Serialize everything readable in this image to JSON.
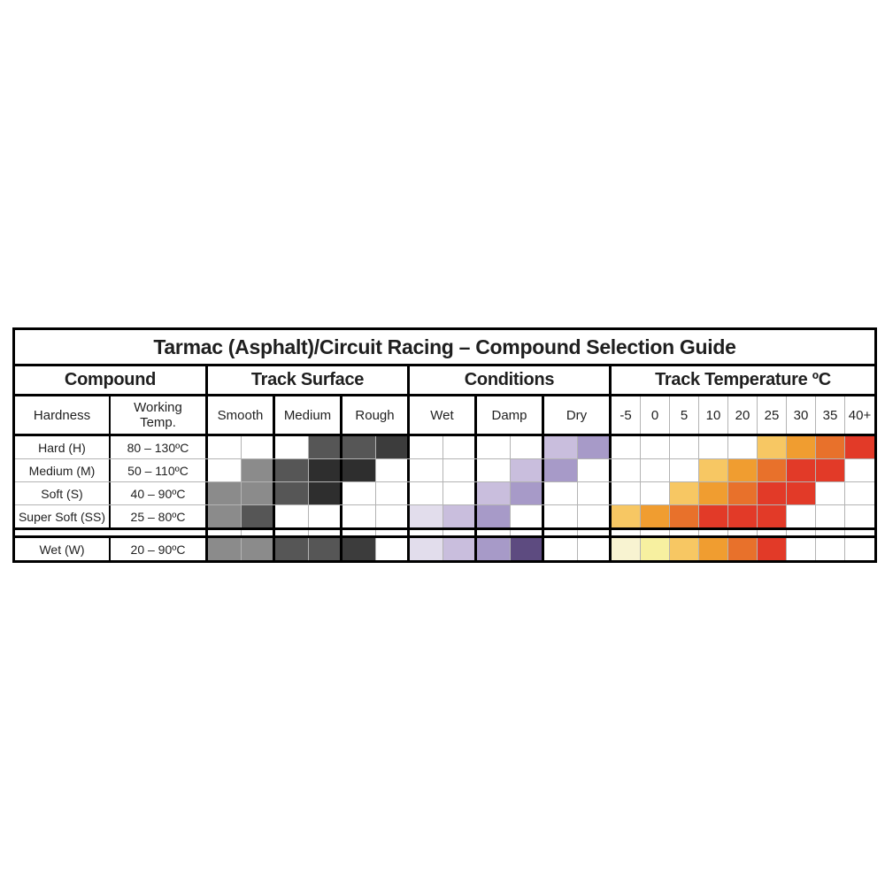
{
  "title": "Tarmac (Asphalt)/Circuit Racing – Compound Selection Guide",
  "sections": {
    "compound": "Compound",
    "track_surface": "Track Surface",
    "conditions": "Conditions",
    "track_temperature": "Track Temperature ºC"
  },
  "columns": {
    "hardness": "Hardness",
    "working_temp": "Working\nTemp.",
    "track_surface": [
      "Smooth",
      "Medium",
      "Rough"
    ],
    "conditions": [
      "Wet",
      "Damp",
      "Dry"
    ],
    "temperatures": [
      "-5",
      "0",
      "5",
      "10",
      "20",
      "25",
      "30",
      "35",
      "40+"
    ]
  },
  "palette": {
    "W": "#ffffff",
    "G1": "#8b8b8b",
    "G2": "#565656",
    "G3": "#3c3c3c",
    "G4": "#2e2e2e",
    "P1": "#e2ddec",
    "P2": "#c9bedd",
    "P3": "#a79ac8",
    "P4": "#5d4b80",
    "Y1": "#f8f3d1",
    "Y2": "#f7f0a0",
    "O3": "#f7c763",
    "O4": "#f09d30",
    "O5": "#e8712b",
    "O6": "#e23a28"
  },
  "chart_data": {
    "type": "heatmap",
    "title": "Tarmac (Asphalt)/Circuit Racing – Compound Selection Guide",
    "columns": {
      "track_surface_halves": [
        "Smooth-a",
        "Smooth-b",
        "Medium-a",
        "Medium-b",
        "Rough-a",
        "Rough-b"
      ],
      "conditions_halves": [
        "Wet-a",
        "Wet-b",
        "Damp-a",
        "Damp-b",
        "Dry-a",
        "Dry-b"
      ],
      "track_temperature_c": [
        "-5",
        "0",
        "5",
        "10",
        "20",
        "25",
        "30",
        "35",
        "40+"
      ]
    },
    "rows": [
      {
        "hardness": "Hard (H)",
        "working_temp": "80 – 130ºC",
        "track_surface": [
          "W",
          "W",
          "W",
          "G2",
          "G2",
          "G3"
        ],
        "conditions": [
          "W",
          "W",
          "W",
          "W",
          "P2",
          "P3"
        ],
        "temperature": [
          "W",
          "W",
          "W",
          "W",
          "W",
          "O3",
          "O4",
          "O5",
          "O6"
        ],
        "separator_before": false
      },
      {
        "hardness": "Medium (M)",
        "working_temp": "50 – 110ºC",
        "track_surface": [
          "W",
          "G1",
          "G2",
          "G4",
          "G4",
          "W"
        ],
        "conditions": [
          "W",
          "W",
          "W",
          "P2",
          "P3",
          "W"
        ],
        "temperature": [
          "W",
          "W",
          "W",
          "O3",
          "O4",
          "O5",
          "O6",
          "O6",
          "W"
        ],
        "separator_before": false
      },
      {
        "hardness": "Soft (S)",
        "working_temp": "40 – 90ºC",
        "track_surface": [
          "G1",
          "G1",
          "G2",
          "G4",
          "W",
          "W"
        ],
        "conditions": [
          "W",
          "W",
          "P2",
          "P3",
          "W",
          "W"
        ],
        "temperature": [
          "W",
          "W",
          "O3",
          "O4",
          "O5",
          "O6",
          "O6",
          "W",
          "W"
        ],
        "separator_before": false
      },
      {
        "hardness": "Super Soft (SS)",
        "working_temp": "25 – 80ºC",
        "track_surface": [
          "G1",
          "G2",
          "W",
          "W",
          "W",
          "W"
        ],
        "conditions": [
          "P1",
          "P2",
          "P3",
          "W",
          "W",
          "W"
        ],
        "temperature": [
          "O3",
          "O4",
          "O5",
          "O6",
          "O6",
          "O6",
          "W",
          "W",
          "W"
        ],
        "separator_before": false
      },
      {
        "hardness": "Wet (W)",
        "working_temp": "20 – 90ºC",
        "track_surface": [
          "G1",
          "G1",
          "G2",
          "G2",
          "G3",
          "W"
        ],
        "conditions": [
          "P1",
          "P2",
          "P3",
          "P4",
          "W",
          "W"
        ],
        "temperature": [
          "Y1",
          "Y2",
          "O3",
          "O4",
          "O5",
          "O6",
          "W",
          "W",
          "W"
        ],
        "separator_before": true
      }
    ]
  }
}
